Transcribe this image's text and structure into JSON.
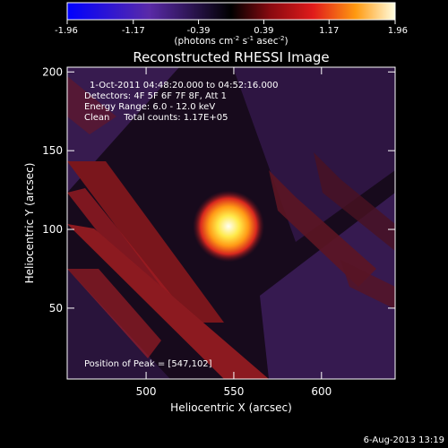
{
  "chart_data": {
    "type": "heatmap",
    "title": "Reconstructed RHESSI Image",
    "xlabel": "Heliocentric X (arcsec)",
    "ylabel": "Heliocentric Y (arcsec)",
    "xlim": [
      455,
      642
    ],
    "ylim": [
      5,
      203
    ],
    "xticks": [
      500,
      550,
      600
    ],
    "yticks": [
      50,
      100,
      150,
      200
    ],
    "colorbar": {
      "ticks": [
        "-1.96",
        "-1.17",
        "-0.39",
        "0.39",
        "1.17",
        "1.96"
      ],
      "range": [
        -1.96,
        1.96
      ],
      "label_main": "(photons cm",
      "label_sup1": "-2",
      "label_mid1": " s",
      "label_sup2": "-1",
      "label_mid2": " asec",
      "label_sup3": "-2",
      "label_end": ")"
    },
    "info_lines": [
      "1-Oct-2011 04:48:20.000 to 04:52:16.000",
      "Detectors: 4F 5F 6F 7F 8F, Att 1",
      "Energy Range: 6.0 - 12.0 keV",
      "Clean     Total counts: 1.17E+05"
    ],
    "peak_text": "Position of Peak = [547,102]",
    "peak": {
      "x": 547,
      "y": 102
    },
    "footer_timestamp": "6-Aug-2013 13:19"
  }
}
